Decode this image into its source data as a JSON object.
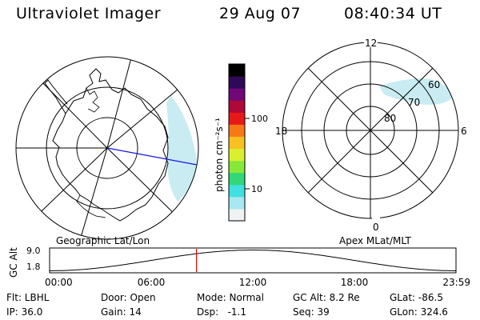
{
  "header": {
    "instrument": "Ultraviolet Imager",
    "date": "29 Aug 07",
    "time": "08:40:34 UT"
  },
  "colorbar": {
    "unit_label": "photon cm⁻²s⁻¹",
    "ticks": [
      {
        "value": 100,
        "label": "100"
      },
      {
        "value": 10,
        "label": "10"
      }
    ],
    "colors": [
      "#eef2f4",
      "#a8e8f0",
      "#40e0e0",
      "#30d878",
      "#88e838",
      "#d8f030",
      "#f8c020",
      "#f87818",
      "#e81818",
      "#b00838",
      "#700878",
      "#300858",
      "#000000"
    ]
  },
  "geographic_panel": {
    "title": "Geographic Lat/Lon",
    "hemisphere": "south",
    "aurora_color": "#c8ecf2",
    "sun_direction_color": "#1818e0"
  },
  "magnetic_panel": {
    "title": "Apex MLat/MLT",
    "mlt_labels": {
      "top": "12",
      "bottom": "0",
      "left": "18",
      "right": "6"
    },
    "lat_labels": [
      "80",
      "70",
      "60"
    ]
  },
  "altitude_plot": {
    "ylabel": "GC Alt",
    "ytick_top": "9.0",
    "ytick_bottom": "1.8",
    "ymin": 1.8,
    "ymax": 9.0,
    "xtick_labels": [
      "00:00",
      "06:00",
      "12:00",
      "18:00",
      "23:59"
    ],
    "marker_hour": 8.676,
    "marker_color": "#e00000"
  },
  "info": {
    "filter": "Flt: LBHL",
    "door": "Door: Open",
    "mode": "Mode: Normal",
    "gc_alt": "GC Alt: 8.2 Re",
    "glat": "GLat: -86.5",
    "ip": "IP: 36.0",
    "gain": "Gain: 14",
    "dsp": "Dsp:   -1.1",
    "seq": "Seq: 39",
    "glon": "GLon: 324.6"
  }
}
